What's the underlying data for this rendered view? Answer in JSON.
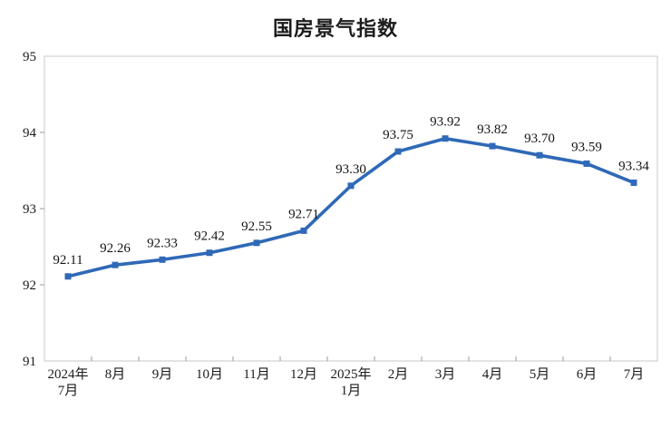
{
  "chart_data": {
    "type": "line",
    "title": "国房景气指数",
    "categories": [
      "2024年\n7月",
      "8月",
      "9月",
      "10月",
      "11月",
      "12月",
      "2025年\n1月",
      "2月",
      "3月",
      "4月",
      "5月",
      "6月",
      "7月"
    ],
    "values": [
      92.11,
      92.26,
      92.33,
      92.42,
      92.55,
      92.71,
      93.3,
      93.75,
      93.92,
      93.82,
      93.7,
      93.59,
      93.34
    ],
    "value_labels": [
      "92.11",
      "92.26",
      "92.33",
      "92.42",
      "92.55",
      "92.71",
      "93.30",
      "93.75",
      "93.92",
      "93.82",
      "93.70",
      "93.59",
      "93.34"
    ],
    "xlabel": "",
    "ylabel": "",
    "ylim": [
      91,
      95
    ],
    "y_tick_step": 1,
    "grid": "off",
    "legend": "none",
    "marker": "square",
    "line_color": "#2F69B7",
    "text_color": "#1b1b1b",
    "border_color": "#c9c9c9",
    "tick_color": "#9a9a9a",
    "background_color": "#ffffff"
  }
}
